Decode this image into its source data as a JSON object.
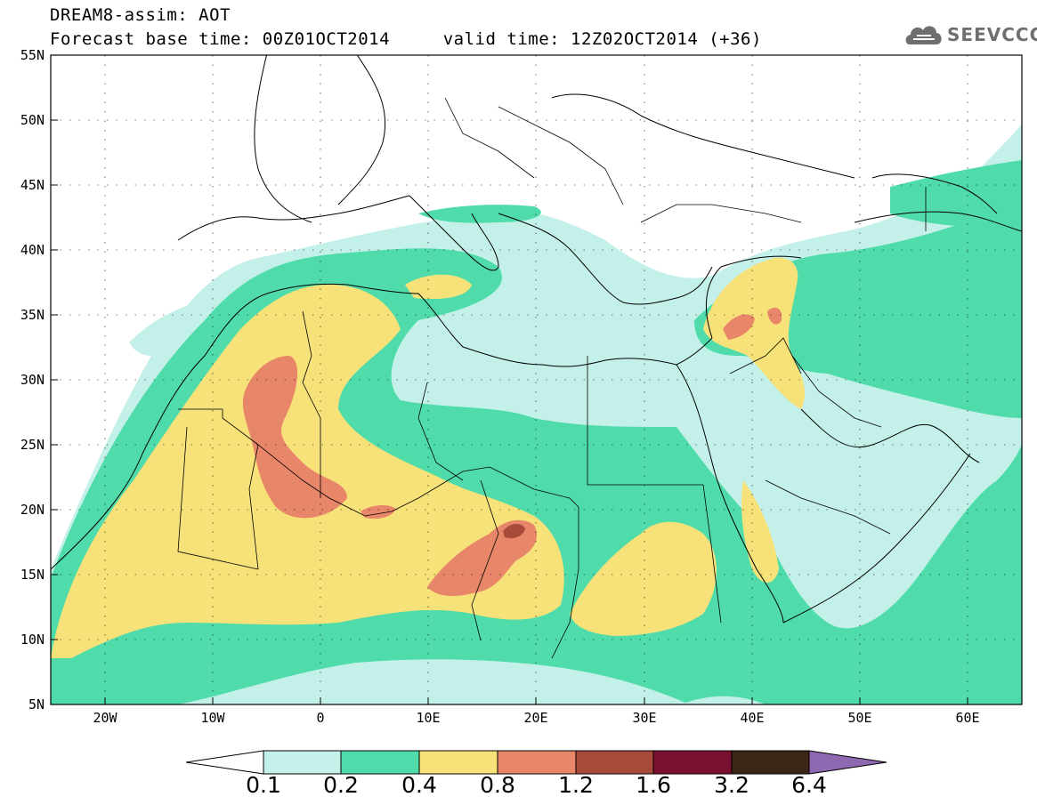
{
  "header": {
    "title_line1": "DREAM8-assim: AOT",
    "title_line2": "Forecast base time: 00Z01OCT2014     valid time: 12Z02OCT2014 (+36)"
  },
  "logo": {
    "text": "SEEVCCC",
    "icon": "cloud-icon"
  },
  "axes": {
    "lon_labels": [
      "20W",
      "10W",
      "0",
      "10E",
      "20E",
      "30E",
      "40E",
      "50E",
      "60E"
    ],
    "lat_labels": [
      "55N",
      "50N",
      "45N",
      "40N",
      "35N",
      "30N",
      "25N",
      "20N",
      "15N",
      "10N",
      "5N"
    ],
    "lon_range": [
      -25,
      65
    ],
    "lat_range": [
      5,
      55
    ],
    "grid": "dotted"
  },
  "colorbar": {
    "labels": [
      "0.1",
      "0.2",
      "0.4",
      "0.8",
      "1.2",
      "1.6",
      "3.2",
      "6.4"
    ],
    "colors": [
      "#ffffff",
      "#c4f0ea",
      "#4fdcaa",
      "#f7e27a",
      "#e8866a",
      "#a84a3a",
      "#7a1030",
      "#3a2516",
      "#8e68b0"
    ]
  },
  "legend_colors": {
    "aot_0_1": "#c4f0ea",
    "aot_0_2": "#4fdcaa",
    "aot_0_4": "#f7e27a",
    "aot_0_8": "#e8866a",
    "aot_1_2": "#a84a3a"
  }
}
